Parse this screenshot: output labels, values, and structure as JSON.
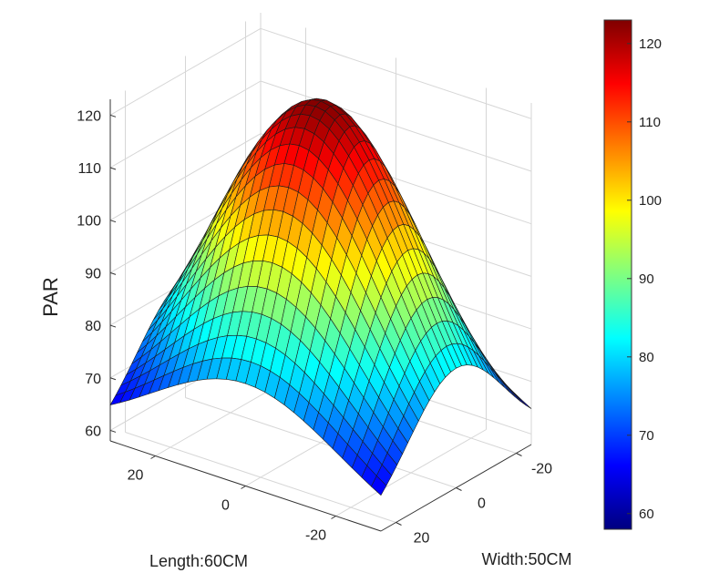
{
  "chart_data": {
    "type": "surface3d",
    "title": "",
    "zlabel": "PAR",
    "xlabel": "Length:60CM",
    "ylabel": "Width:50CM",
    "zlim": [
      58,
      123
    ],
    "z_ticks": [
      60,
      70,
      80,
      90,
      100,
      110,
      120
    ],
    "length_ticks": [
      20,
      0,
      -20
    ],
    "width_ticks": [
      -20,
      0,
      20
    ],
    "length_range": [
      -30,
      30
    ],
    "width_range": [
      -25,
      25
    ],
    "grid_size": 29,
    "surface_model": "z = 58 + 65 * exp(-((L/26)^2 + (W/20)^2) * 0.8) approx; peak ~123 at center, corners ~60",
    "peak_value": 123,
    "corner_values": [
      60,
      60,
      60,
      60
    ],
    "colorbar": {
      "range": [
        58,
        123
      ],
      "ticks": [
        60,
        70,
        80,
        90,
        100,
        110,
        120
      ],
      "colormap": "jet"
    },
    "grid": true
  }
}
